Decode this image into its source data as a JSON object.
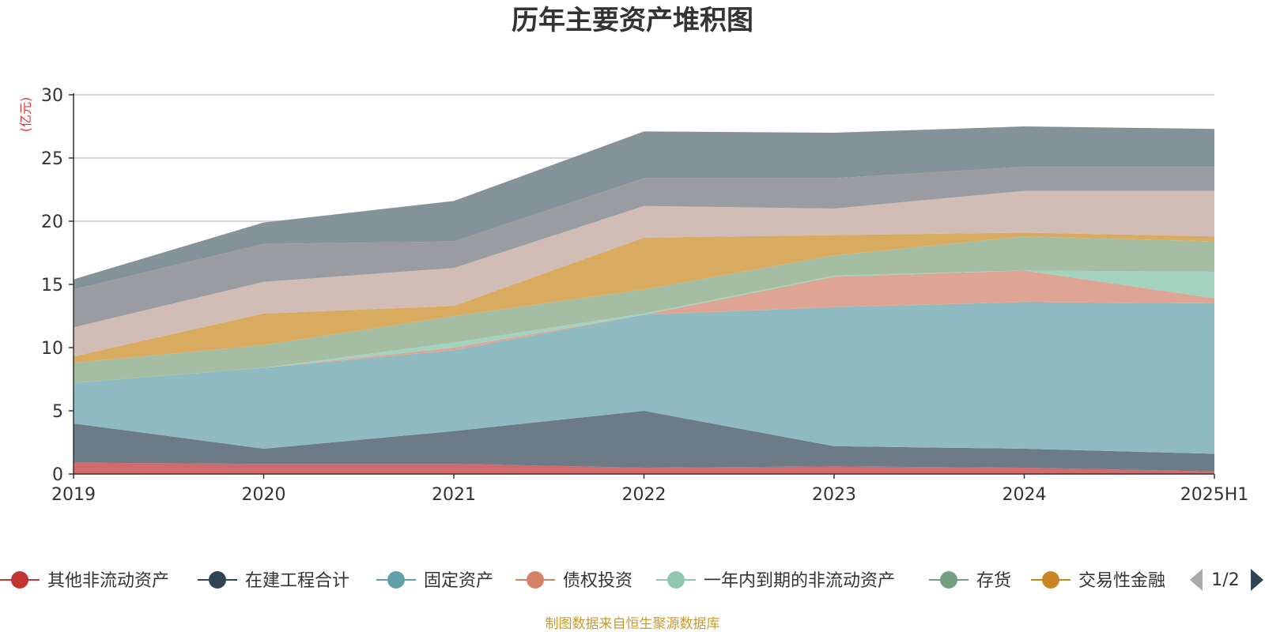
{
  "chart_data": {
    "type": "area",
    "stacked": true,
    "title": "历年主要资产堆积图",
    "y_unit": "(亿元)",
    "x": [
      "2019",
      "2020",
      "2021",
      "2022",
      "2023",
      "2024",
      "2025H1"
    ],
    "ylim": [
      0,
      30
    ],
    "yticks": [
      0,
      5,
      10,
      15,
      20,
      25,
      30
    ],
    "grid": true,
    "legend_position": "bottom",
    "legend_page": "1/2",
    "series": [
      {
        "name": "其他非流动资产",
        "color": "#d06a6c",
        "values": [
          0.9,
          0.8,
          0.8,
          0.5,
          0.6,
          0.5,
          0.2
        ]
      },
      {
        "name": "在建工程合计",
        "color": "#6d7b86",
        "values": [
          3.1,
          1.2,
          2.6,
          4.5,
          1.6,
          1.5,
          1.4
        ]
      },
      {
        "name": "固定资产",
        "color": "#90bac1",
        "values": [
          3.2,
          6.4,
          6.4,
          7.6,
          11.0,
          11.6,
          11.9
        ]
      },
      {
        "name": "债权投资",
        "color": "#dfa594",
        "values": [
          0.0,
          0.0,
          0.2,
          0.0,
          2.4,
          2.5,
          0.4
        ]
      },
      {
        "name": "一年内到期的非流动资产",
        "color": "#a3d3be",
        "values": [
          0.0,
          0.0,
          0.4,
          0.1,
          0.1,
          0.0,
          2.1
        ]
      },
      {
        "name": "存货",
        "color": "#a5bea3",
        "values": [
          1.6,
          1.8,
          2.1,
          1.9,
          1.6,
          2.7,
          2.4
        ]
      },
      {
        "name": "交易性金融",
        "color": "#d9ab61",
        "values": [
          0.5,
          2.5,
          0.8,
          4.1,
          1.6,
          0.3,
          0.4
        ]
      },
      {
        "name": "",
        "color": "#d1bcb6",
        "values": [
          2.3,
          2.5,
          3.0,
          2.5,
          2.1,
          3.3,
          3.6
        ]
      },
      {
        "name": "",
        "color": "#9a9ca1",
        "values": [
          3.0,
          3.0,
          2.1,
          2.2,
          2.4,
          1.9,
          1.9
        ]
      },
      {
        "name": "",
        "color": "#84929a",
        "values": [
          0.8,
          1.7,
          3.2,
          3.7,
          3.6,
          3.2,
          3.0
        ]
      }
    ],
    "legend_markers": [
      {
        "name": "其他非流动资产",
        "color": "#c23531"
      },
      {
        "name": "在建工程合计",
        "color": "#2f4554"
      },
      {
        "name": "固定资产",
        "color": "#61a0a8"
      },
      {
        "name": "债权投资",
        "color": "#d48265"
      },
      {
        "name": "一年内到期的非流动资产",
        "color": "#91c7ae"
      },
      {
        "name": "存货",
        "color": "#749f83"
      },
      {
        "name": "交易性金融",
        "color": "#ca8622"
      }
    ],
    "source": "制图数据来自恒生聚源数据库"
  }
}
